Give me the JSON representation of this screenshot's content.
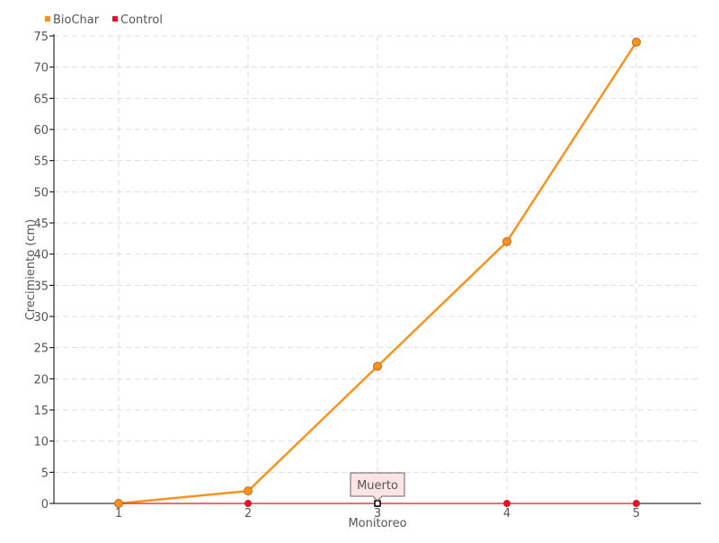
{
  "chart_data": {
    "type": "line",
    "title": "",
    "xlabel": "Monitoreo",
    "ylabel": "Crecimiento (cm)",
    "x": [
      1,
      2,
      3,
      4,
      5
    ],
    "xlim": [
      0.5,
      5.5
    ],
    "ylim": [
      0,
      75
    ],
    "ytick_step": 5,
    "grid": true,
    "legend_placement": "top-left",
    "series": [
      {
        "name": "BioChar",
        "color": "#f7931e",
        "values": [
          0,
          2,
          22,
          42,
          74
        ]
      },
      {
        "name": "Control",
        "color": "#e8102a",
        "values": [
          0,
          0,
          0,
          0,
          0
        ]
      }
    ],
    "annotations": [
      {
        "series": "Control",
        "x": 3,
        "text": "Muerto"
      }
    ]
  }
}
